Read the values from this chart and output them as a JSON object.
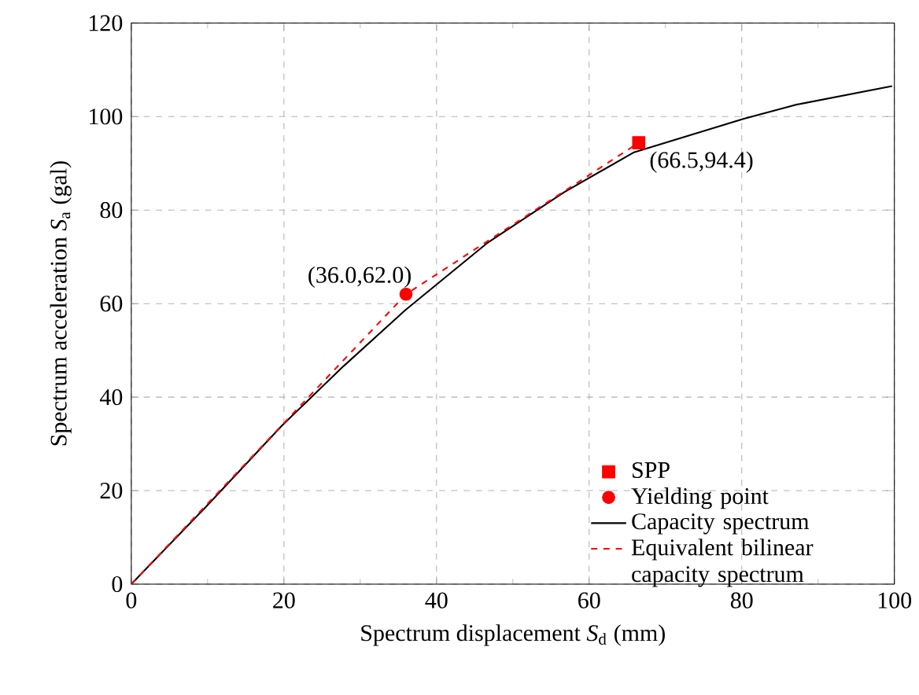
{
  "chart_data": {
    "type": "line",
    "xlabel": "Spectrum displacement  *S*$_{d}$ (mm)",
    "ylabel": "Spectrum acceleration *S*$_{a}$ (gal)",
    "xlim": [
      0,
      100
    ],
    "ylim": [
      0,
      120
    ],
    "xticks": [
      0,
      20,
      40,
      60,
      80,
      100
    ],
    "yticks": [
      0,
      20,
      40,
      60,
      80,
      100,
      120
    ],
    "grid": true,
    "legend": "bottom right",
    "series": [
      {
        "name": "SPP",
        "type": "scatter",
        "marker": "square",
        "color": "#ff0000",
        "x": [
          66.5
        ],
        "values": [
          94.4
        ]
      },
      {
        "name": "Yielding point",
        "type": "scatter",
        "marker": "circle",
        "color": "#ff0000",
        "x": [
          36.0
        ],
        "values": [
          62.0
        ]
      },
      {
        "name": "Capacity spectrum",
        "line_style": "solid",
        "color": "#000000",
        "x": [
          0,
          9.7,
          19.8,
          27.8,
          35.9,
          46.6,
          56.7,
          65.8,
          80.2,
          87.0,
          99.7
        ],
        "values": [
          0,
          16.4,
          34.0,
          46.6,
          58.6,
          72.9,
          83.8,
          92.3,
          99.5,
          102.5,
          106.5
        ]
      },
      {
        "name": "Equivalent bilinear capacity spectrum",
        "line_style": "dashed",
        "color": "#ff0000",
        "x": [
          0,
          36.0,
          66.5
        ],
        "values": [
          0,
          62.0,
          94.4
        ]
      }
    ],
    "annotations": [
      {
        "text": "(36.0,62.0)",
        "x": 36.0,
        "y": 62.0
      },
      {
        "text": "(66.5,94.4)",
        "x": 66.5,
        "y": 94.4
      }
    ]
  }
}
